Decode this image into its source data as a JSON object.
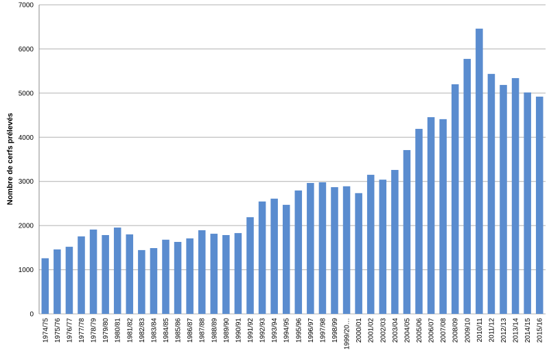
{
  "chart_data": {
    "type": "bar",
    "y_label": "Nombre de cerfs prélevés",
    "categories": [
      "1974/75",
      "1975/76",
      "1976/77",
      "1977/78",
      "1978/79",
      "1979/80",
      "1980/81",
      "1981/82",
      "1982/83",
      "1983/84",
      "1984/85",
      "1985/86",
      "1986/87",
      "1987/88",
      "1988/89",
      "1989/90",
      "1990/91",
      "1991/92",
      "1992/93",
      "1993/94",
      "1994/95",
      "1995/96",
      "1996/97",
      "1997/98",
      "1998/99",
      "1999/20…",
      "2000/01",
      "2001/02",
      "2002/03",
      "2003/04",
      "2004/05",
      "2005/06",
      "2006/07",
      "2007/08",
      "2008/09",
      "2009/10",
      "2010/11",
      "2011/12",
      "2012/13",
      "2013/14",
      "2014/15",
      "2015/16"
    ],
    "values": [
      1260,
      1460,
      1520,
      1755,
      1910,
      1785,
      1955,
      1800,
      1445,
      1490,
      1680,
      1630,
      1710,
      1895,
      1815,
      1785,
      1830,
      2190,
      2545,
      2610,
      2470,
      2795,
      2965,
      2980,
      2870,
      2890,
      2735,
      3150,
      3040,
      3260,
      3710,
      4190,
      4455,
      4410,
      5200,
      5775,
      6460,
      5435,
      5185,
      5340,
      5015,
      4920
    ],
    "color": "#5a8ccf",
    "ylim": [
      0,
      7000
    ],
    "yticks": [
      0,
      1000,
      2000,
      3000,
      4000,
      5000,
      6000,
      7000
    ],
    "grid": true
  }
}
